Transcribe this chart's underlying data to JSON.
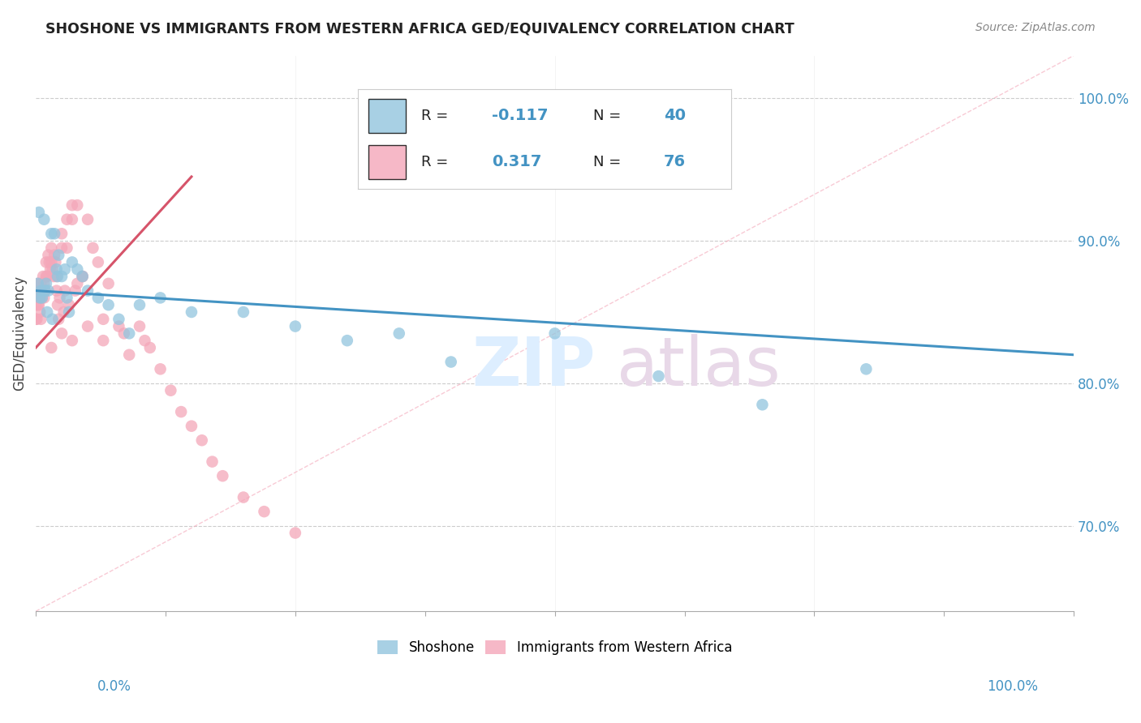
{
  "title": "SHOSHONE VS IMMIGRANTS FROM WESTERN AFRICA GED/EQUIVALENCY CORRELATION CHART",
  "source": "Source: ZipAtlas.com",
  "ylabel": "GED/Equivalency",
  "legend_label1": "Shoshone",
  "legend_label2": "Immigrants from Western Africa",
  "R1": "-0.117",
  "N1": "40",
  "R2": "0.317",
  "N2": "76",
  "blue_color": "#92c5de",
  "pink_color": "#f4a7b9",
  "trendline_blue": "#4393c3",
  "trendline_pink": "#d6546a",
  "dash_color": "#f4a7b9",
  "blue_x": [
    0.5,
    1.0,
    1.5,
    2.0,
    2.5,
    3.0,
    0.3,
    0.8,
    1.2,
    1.8,
    2.2,
    3.5,
    4.0,
    5.0,
    6.0,
    7.0,
    8.0,
    9.0,
    10.0,
    12.0,
    15.0,
    20.0,
    25.0,
    30.0,
    35.0,
    40.0,
    50.0,
    60.0,
    70.0,
    80.0,
    0.2,
    0.6,
    1.1,
    1.6,
    2.1,
    2.8,
    0.4,
    0.9,
    3.2,
    4.5
  ],
  "blue_y": [
    86.5,
    87.0,
    90.5,
    88.0,
    87.5,
    86.0,
    92.0,
    91.5,
    86.5,
    90.5,
    89.0,
    88.5,
    88.0,
    86.5,
    86.0,
    85.5,
    84.5,
    83.5,
    85.5,
    86.0,
    85.0,
    85.0,
    84.0,
    83.0,
    83.5,
    81.5,
    83.5,
    80.5,
    78.5,
    81.0,
    87.0,
    86.0,
    85.0,
    84.5,
    87.5,
    88.0,
    86.0,
    86.5,
    85.0,
    87.5
  ],
  "pink_x": [
    0.0,
    0.0,
    0.1,
    0.1,
    0.2,
    0.2,
    0.3,
    0.3,
    0.4,
    0.4,
    0.5,
    0.5,
    0.6,
    0.7,
    0.7,
    0.8,
    0.8,
    0.9,
    1.0,
    1.0,
    1.1,
    1.2,
    1.3,
    1.4,
    1.5,
    1.5,
    1.6,
    1.7,
    1.8,
    1.9,
    2.0,
    2.0,
    2.1,
    2.2,
    2.3,
    2.5,
    2.5,
    2.7,
    2.8,
    3.0,
    3.0,
    3.2,
    3.5,
    3.5,
    3.8,
    4.0,
    4.0,
    4.5,
    5.0,
    5.5,
    6.0,
    6.5,
    7.0,
    8.0,
    9.0,
    10.0,
    11.0,
    12.0,
    13.0,
    14.0,
    15.0,
    16.0,
    17.0,
    18.0,
    20.0,
    22.0,
    25.0,
    5.0,
    4.5,
    3.5,
    2.5,
    1.5,
    0.5,
    6.5,
    8.5,
    10.5
  ],
  "pink_y": [
    85.5,
    84.5,
    84.5,
    86.0,
    85.5,
    87.0,
    86.5,
    85.5,
    85.0,
    86.0,
    87.0,
    86.5,
    86.0,
    87.5,
    86.5,
    87.0,
    86.0,
    86.5,
    88.5,
    87.5,
    87.5,
    89.0,
    88.5,
    88.0,
    89.5,
    88.5,
    88.0,
    87.5,
    89.0,
    88.5,
    87.5,
    86.5,
    85.5,
    84.5,
    86.0,
    90.5,
    89.5,
    85.0,
    86.5,
    91.5,
    89.5,
    85.5,
    91.5,
    92.5,
    86.5,
    92.5,
    87.0,
    87.5,
    91.5,
    89.5,
    88.5,
    84.5,
    87.0,
    84.0,
    82.0,
    84.0,
    82.5,
    81.0,
    79.5,
    78.0,
    77.0,
    76.0,
    74.5,
    73.5,
    72.0,
    71.0,
    69.5,
    84.0,
    87.5,
    83.0,
    83.5,
    82.5,
    84.5,
    83.0,
    83.5,
    83.0
  ],
  "xlim": [
    0,
    100
  ],
  "ylim": [
    64,
    103
  ],
  "yticks": [
    70,
    80,
    90,
    100
  ],
  "ytick_labels": [
    "70.0%",
    "80.0%",
    "90.0%",
    "100.0%"
  ],
  "blue_trend_x0": 0,
  "blue_trend_x1": 100,
  "blue_trend_y0": 86.5,
  "blue_trend_y1": 82.0,
  "pink_trend_x0": 0,
  "pink_trend_x1": 15,
  "pink_trend_y0": 82.5,
  "pink_trend_y1": 94.5,
  "dash_x0": 0,
  "dash_x1": 100,
  "dash_y0": 64,
  "dash_y1": 103
}
